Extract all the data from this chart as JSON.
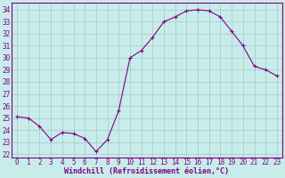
{
  "x": [
    0,
    1,
    2,
    3,
    4,
    5,
    6,
    7,
    8,
    9,
    10,
    11,
    12,
    13,
    14,
    15,
    16,
    17,
    18,
    19,
    20,
    21,
    22,
    23
  ],
  "y": [
    25.1,
    25.0,
    24.3,
    23.2,
    23.8,
    23.7,
    23.3,
    22.2,
    23.2,
    25.6,
    30.0,
    30.6,
    31.7,
    33.0,
    33.4,
    33.9,
    34.0,
    33.9,
    33.4,
    32.2,
    31.0,
    29.3,
    29.0,
    28.5
  ],
  "line_color": "#800080",
  "marker": "P",
  "marker_size": 2.5,
  "bg_color": "#c8ecea",
  "grid_color": "#a0c8c8",
  "xlabel": "Windchill (Refroidissement éolien,°C)",
  "xlabel_color": "#800080",
  "ylabel_ticks": [
    22,
    23,
    24,
    25,
    26,
    27,
    28,
    29,
    30,
    31,
    32,
    33,
    34
  ],
  "ylim": [
    21.7,
    34.6
  ],
  "xlim": [
    -0.5,
    23.5
  ],
  "tick_fontsize": 5.5,
  "xlabel_fontsize": 6.0
}
